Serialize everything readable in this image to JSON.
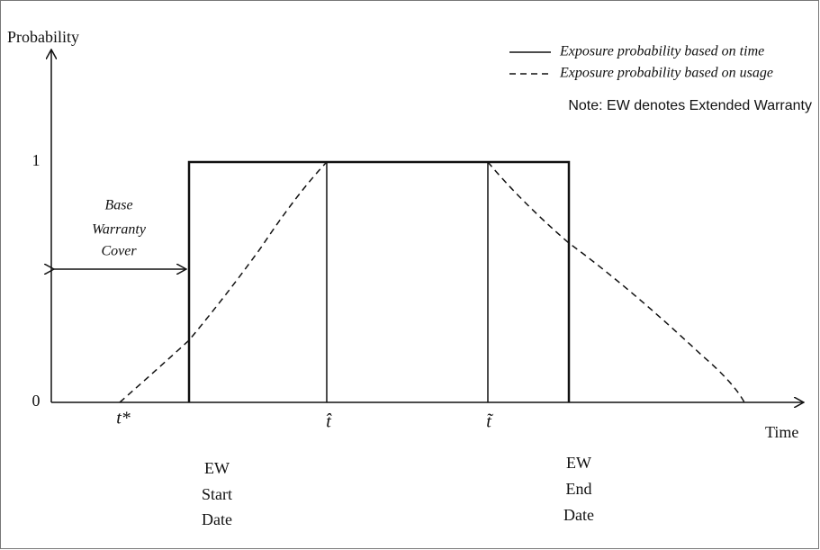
{
  "axes": {
    "y_label": "Probability",
    "x_label": "Time",
    "y_one": "1",
    "y_zero": "0"
  },
  "legend": {
    "solid": "Exposure probability based on time",
    "dashed": "Exposure probability based on usage"
  },
  "note": "Note: EW denotes Extended Warranty",
  "base_warranty": {
    "lines": [
      "Base",
      "Warranty",
      "Cover"
    ]
  },
  "markers": {
    "t_star": "t*",
    "t_hat": "t̂",
    "t_tilde": "t̃"
  },
  "ew_start": {
    "lines": [
      "EW",
      "Start",
      "Date"
    ]
  },
  "ew_end": {
    "lines": [
      "EW",
      "End",
      "Date"
    ]
  }
}
